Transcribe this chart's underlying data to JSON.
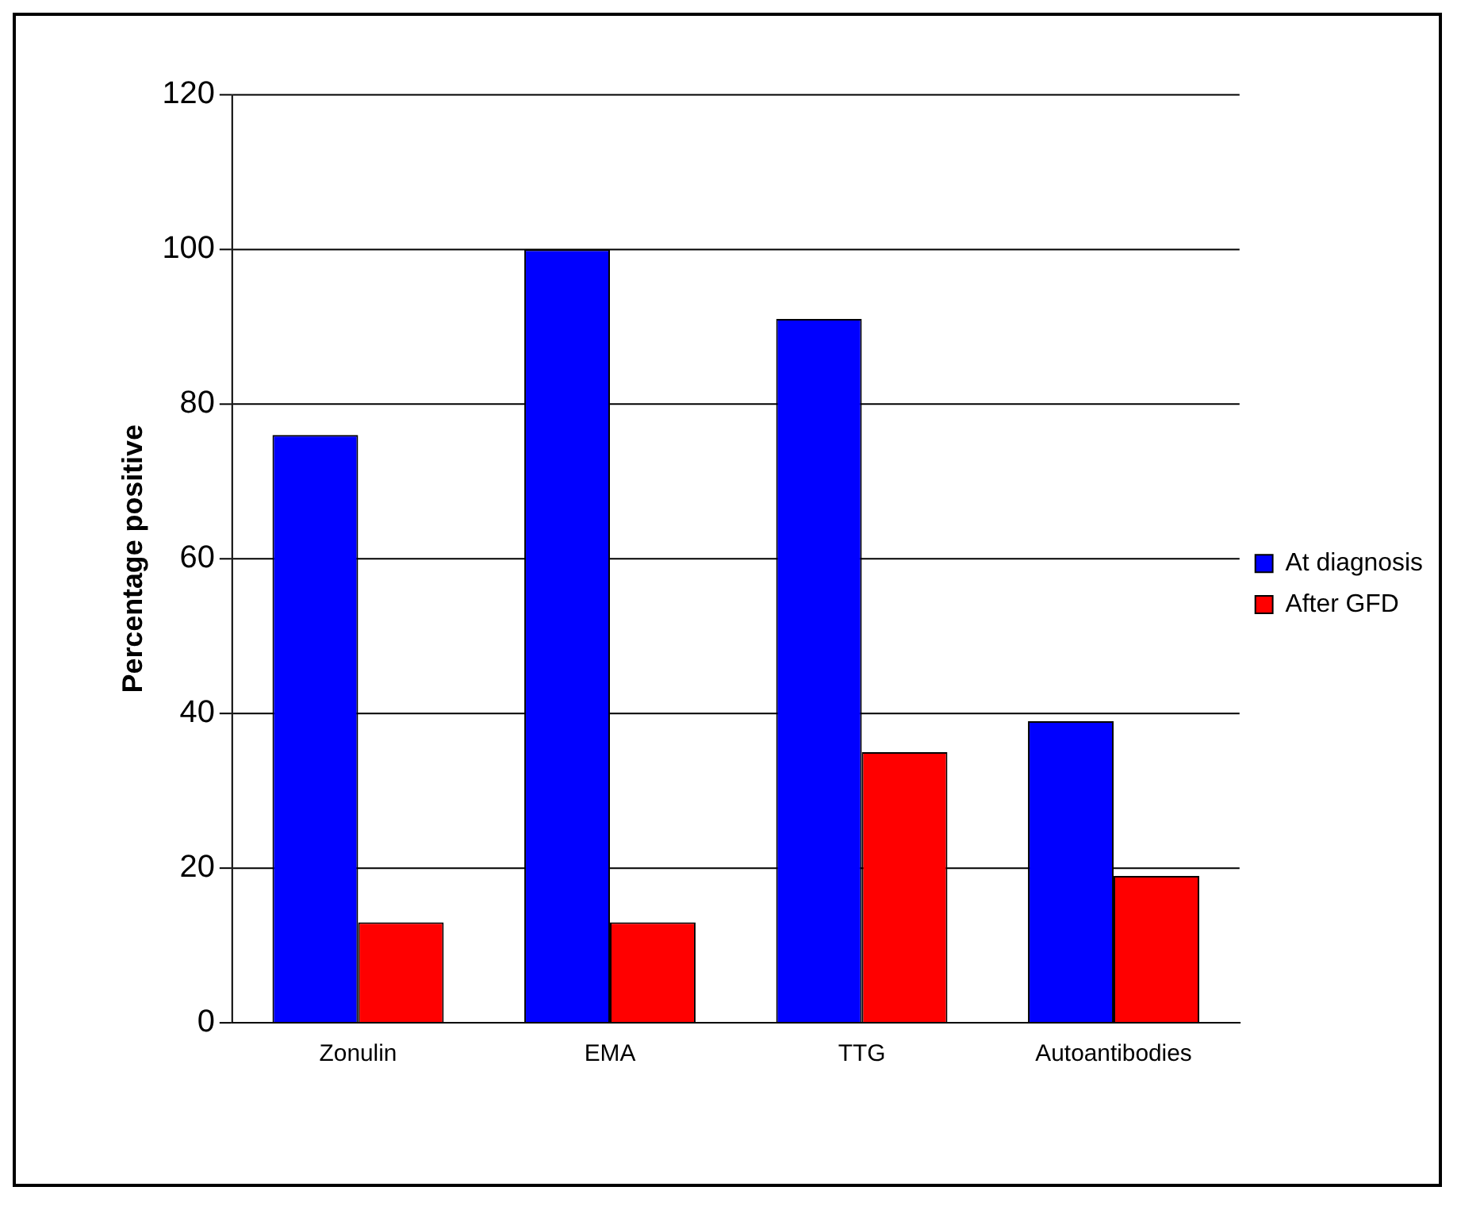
{
  "chart_data": {
    "type": "bar",
    "ylabel": "Percentage positive",
    "categories": [
      "Zonulin",
      "EMA",
      "TTG",
      "Autoantibodies"
    ],
    "series": [
      {
        "name": "At diagnosis",
        "color": "#0000ff",
        "values": [
          76,
          100,
          91,
          39
        ]
      },
      {
        "name": "After GFD",
        "color": "#ff0000",
        "values": [
          13,
          13,
          35,
          19
        ]
      }
    ],
    "ylim": [
      0,
      120
    ],
    "yticks": [
      0,
      20,
      40,
      60,
      80,
      100,
      120
    ],
    "grid": "y",
    "legend": "right"
  }
}
